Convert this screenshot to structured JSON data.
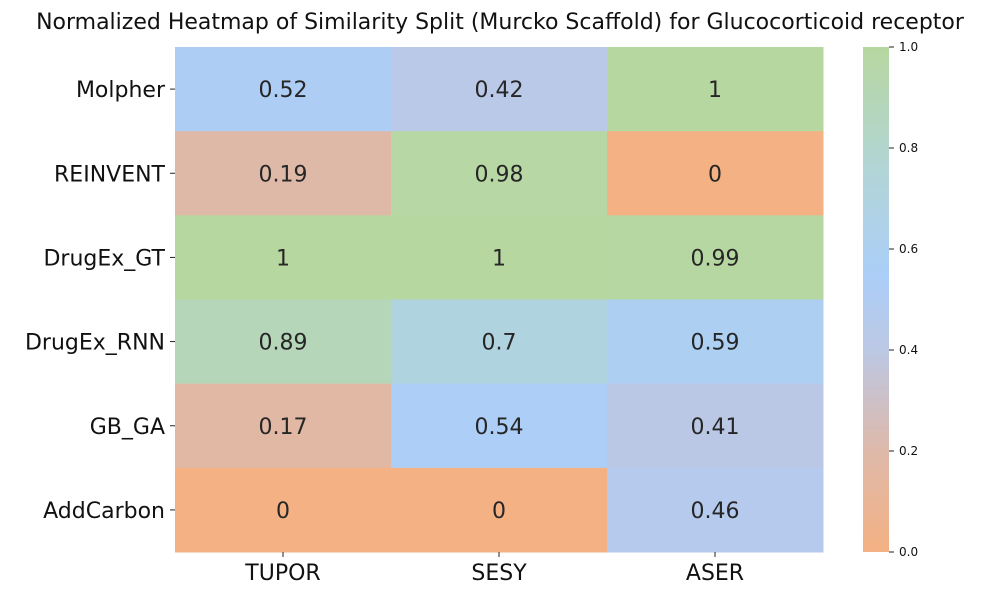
{
  "chart_data": {
    "type": "heatmap",
    "title": "Normalized Heatmap of Similarity Split (Murcko Scaffold) for Glucocorticoid receptor",
    "xlabel": "",
    "ylabel": "",
    "x_categories": [
      "TUPOR",
      "SESY",
      "ASER"
    ],
    "y_categories": [
      "Molpher",
      "REINVENT",
      "DrugEx_GT",
      "DrugEx_RNN",
      "GB_GA",
      "AddCarbon"
    ],
    "values": [
      [
        0.52,
        0.42,
        1
      ],
      [
        0.19,
        0.98,
        0
      ],
      [
        1,
        1,
        0.99
      ],
      [
        0.89,
        0.7,
        0.59
      ],
      [
        0.17,
        0.54,
        0.41
      ],
      [
        0,
        0,
        0.46
      ]
    ],
    "value_labels": [
      [
        "0.52",
        "0.42",
        "1"
      ],
      [
        "0.19",
        "0.98",
        "0"
      ],
      [
        "1",
        "1",
        "0.99"
      ],
      [
        "0.89",
        "0.7",
        "0.59"
      ],
      [
        "0.17",
        "0.54",
        "0.41"
      ],
      [
        "0",
        "0",
        "0.46"
      ]
    ],
    "colorbar": {
      "range": [
        0,
        1
      ],
      "ticks": [
        0.0,
        0.2,
        0.4,
        0.6,
        0.8,
        1.0
      ],
      "tick_labels": [
        "0.0",
        "0.2",
        "0.4",
        "0.6",
        "0.8",
        "1.0"
      ],
      "colors": [
        {
          "stop": 0.0,
          "color": "#f4b183"
        },
        {
          "stop": 0.2,
          "color": "#deb9aa"
        },
        {
          "stop": 0.4,
          "color": "#bcc8e4"
        },
        {
          "stop": 0.55,
          "color": "#abcef8"
        },
        {
          "stop": 0.75,
          "color": "#b2d5d8"
        },
        {
          "stop": 1.0,
          "color": "#b7d7a0"
        }
      ]
    },
    "annotation_color": "#262626"
  }
}
